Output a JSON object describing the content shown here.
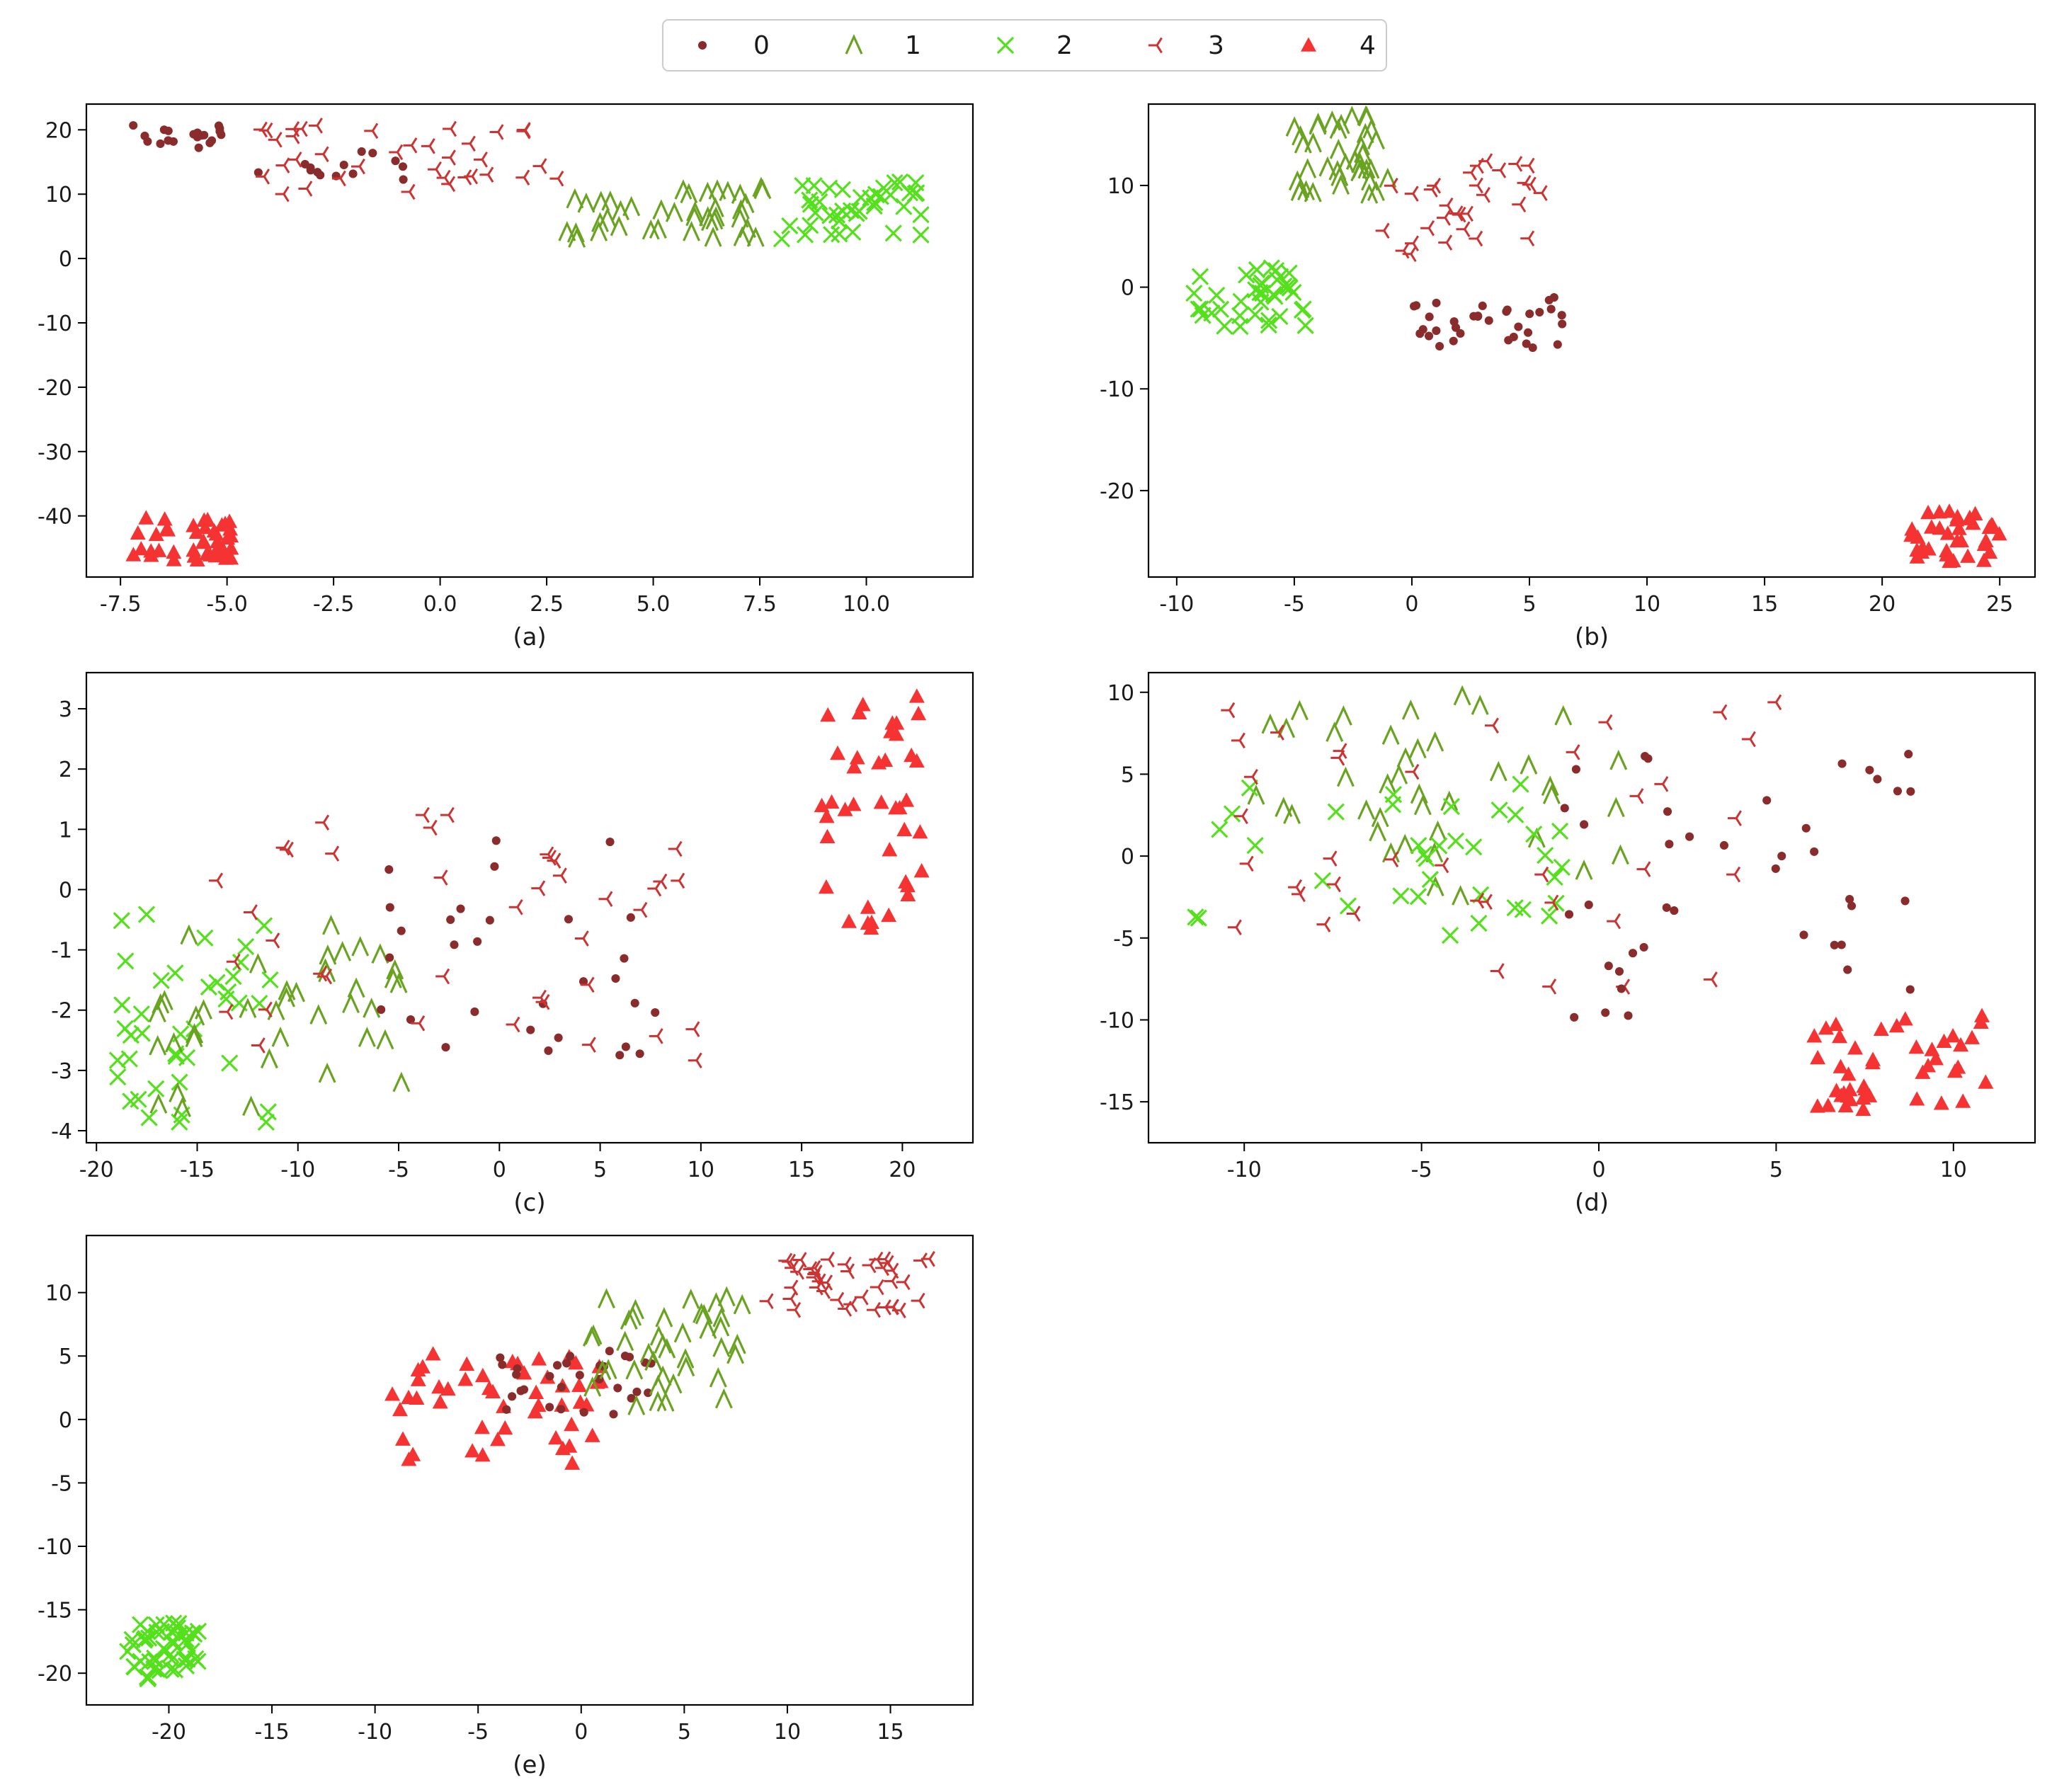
{
  "legend": {
    "entries": [
      {
        "label": "0",
        "marker": "circle-dot",
        "color": "#8b2c2c"
      },
      {
        "label": "1",
        "marker": "caret-up",
        "color": "#6aa321"
      },
      {
        "label": "2",
        "marker": "x-cross",
        "color": "#54e01b"
      },
      {
        "label": "3",
        "marker": "tri-left",
        "color": "#cc3333"
      },
      {
        "label": "4",
        "marker": "triangle-up",
        "color": "#f53333"
      }
    ]
  },
  "chart_data": [
    {
      "type": "scatter",
      "caption": "(a)",
      "xlim": [
        -8.3,
        12.5
      ],
      "ylim": [
        -49.5,
        24
      ],
      "xticks": [
        -7.5,
        -5.0,
        -2.5,
        0.0,
        2.5,
        5.0,
        7.5,
        10.0
      ],
      "xtick_labels": [
        "-7.5",
        "-5.0",
        "-2.5",
        "0.0",
        "2.5",
        "5.0",
        "7.5",
        "10.0"
      ],
      "yticks": [
        -40,
        -30,
        -20,
        -10,
        0,
        10,
        20
      ],
      "ytick_labels": [
        "-40",
        "-30",
        "-20",
        "-10",
        "0",
        "10",
        "20"
      ],
      "clusters": [
        {
          "cls": "0",
          "n": 20,
          "x": [
            -7.2,
            -5.0
          ],
          "y": [
            17,
            21
          ]
        },
        {
          "cls": "0",
          "n": 14,
          "x": [
            -4.5,
            -0.5
          ],
          "y": [
            12,
            17
          ]
        },
        {
          "cls": "3",
          "n": 36,
          "x": [
            -4.2,
            2.8
          ],
          "y": [
            10,
            21
          ]
        },
        {
          "cls": "1",
          "n": 40,
          "x": [
            2.8,
            7.6
          ],
          "y": [
            3,
            11
          ]
        },
        {
          "cls": "2",
          "n": 40,
          "x": [
            8.0,
            11.3
          ],
          "y": [
            3,
            12
          ]
        },
        {
          "cls": "4",
          "n": 42,
          "x": [
            -7.2,
            -4.8
          ],
          "y": [
            -47,
            -40
          ]
        }
      ]
    },
    {
      "type": "scatter",
      "caption": "(b)",
      "xlim": [
        -11.2,
        26.5
      ],
      "ylim": [
        -28.5,
        18
      ],
      "xticks": [
        -10,
        -5,
        0,
        5,
        10,
        15,
        20,
        25
      ],
      "xtick_labels": [
        "-10",
        "-5",
        "0",
        "5",
        "10",
        "15",
        "20",
        "25"
      ],
      "yticks": [
        -20,
        -10,
        0,
        10
      ],
      "ytick_labels": [
        "-20",
        "-10",
        "0",
        "10"
      ],
      "clusters": [
        {
          "cls": "1",
          "n": 40,
          "x": [
            -5.0,
            -1.0
          ],
          "y": [
            9,
            17
          ]
        },
        {
          "cls": "3",
          "n": 30,
          "x": [
            -1.5,
            6.0
          ],
          "y": [
            3,
            14
          ]
        },
        {
          "cls": "2",
          "n": 38,
          "x": [
            -9.5,
            -4.5
          ],
          "y": [
            -4,
            2
          ]
        },
        {
          "cls": "0",
          "n": 34,
          "x": [
            0,
            6.5
          ],
          "y": [
            -6,
            -1
          ]
        },
        {
          "cls": "4",
          "n": 36,
          "x": [
            21,
            25
          ],
          "y": [
            -27,
            -22
          ]
        }
      ]
    },
    {
      "type": "scatter",
      "caption": "(c)",
      "xlim": [
        -20.5,
        23.5
      ],
      "ylim": [
        -4.2,
        3.6
      ],
      "xticks": [
        -20,
        -15,
        -10,
        -5,
        0,
        5,
        10,
        15,
        20
      ],
      "xtick_labels": [
        "-20",
        "-15",
        "-10",
        "-5",
        "0",
        "5",
        "10",
        "15",
        "20"
      ],
      "yticks": [
        -4,
        -3,
        -2,
        -1,
        0,
        1,
        2,
        3
      ],
      "ytick_labels": [
        "-4",
        "-3",
        "-2",
        "-1",
        "0",
        "1",
        "2",
        "3"
      ],
      "clusters": [
        {
          "cls": "2",
          "n": 40,
          "x": [
            -19,
            -11
          ],
          "y": [
            -3.9,
            -0.3
          ]
        },
        {
          "cls": "1",
          "n": 40,
          "x": [
            -17,
            -4.5
          ],
          "y": [
            -3.7,
            -0.5
          ]
        },
        {
          "cls": "0",
          "n": 30,
          "x": [
            -6,
            8
          ],
          "y": [
            -2.8,
            0.95
          ]
        },
        {
          "cls": "3",
          "n": 40,
          "x": [
            -14,
            11
          ],
          "y": [
            -3.0,
            1.3
          ]
        },
        {
          "cls": "4",
          "n": 40,
          "x": [
            16,
            21
          ],
          "y": [
            -0.7,
            3.3
          ]
        }
      ]
    },
    {
      "type": "scatter",
      "caption": "(d)",
      "xlim": [
        -12.7,
        12.3
      ],
      "ylim": [
        -17.5,
        11.2
      ],
      "xticks": [
        -10,
        -5,
        0,
        5,
        10
      ],
      "xtick_labels": [
        "-10",
        "-5",
        "0",
        "5",
        "10"
      ],
      "yticks": [
        -15,
        -10,
        -5,
        0,
        5,
        10
      ],
      "ytick_labels": [
        "-15",
        "-10",
        "-5",
        "0",
        "5",
        "10"
      ],
      "clusters": [
        {
          "cls": "1",
          "n": 40,
          "x": [
            -10,
            0.8
          ],
          "y": [
            -2.5,
            10
          ]
        },
        {
          "cls": "2",
          "n": 36,
          "x": [
            -11.5,
            0
          ],
          "y": [
            -5,
            4.5
          ]
        },
        {
          "cls": "3",
          "n": 38,
          "x": [
            -10.5,
            5
          ],
          "y": [
            -8,
            9.5
          ]
        },
        {
          "cls": "0",
          "n": 40,
          "x": [
            -1.5,
            9
          ],
          "y": [
            -10,
            6.5
          ]
        },
        {
          "cls": "4",
          "n": 44,
          "x": [
            6,
            11
          ],
          "y": [
            -16,
            -9.5
          ]
        }
      ]
    },
    {
      "type": "scatter",
      "caption": "(e)",
      "xlim": [
        -24,
        19
      ],
      "ylim": [
        -22.5,
        14.5
      ],
      "xticks": [
        -20,
        -15,
        -10,
        -5,
        0,
        5,
        10,
        15
      ],
      "xtick_labels": [
        "-20",
        "-15",
        "-10",
        "-5",
        "0",
        "5",
        "10",
        "15"
      ],
      "yticks": [
        -20,
        -15,
        -10,
        -5,
        0,
        5,
        10
      ],
      "ytick_labels": [
        "-20",
        "-15",
        "-10",
        "-5",
        "0",
        "5",
        "10"
      ],
      "clusters": [
        {
          "cls": "2",
          "n": 50,
          "x": [
            -22,
            -18.5
          ],
          "y": [
            -20.5,
            -16
          ]
        },
        {
          "cls": "4",
          "n": 50,
          "x": [
            -9.5,
            1
          ],
          "y": [
            -3.5,
            5.5
          ]
        },
        {
          "cls": "0",
          "n": 30,
          "x": [
            -4,
            3.5
          ],
          "y": [
            0,
            5.5
          ]
        },
        {
          "cls": "1",
          "n": 40,
          "x": [
            0.5,
            8
          ],
          "y": [
            1,
            10
          ]
        },
        {
          "cls": "3",
          "n": 42,
          "x": [
            9,
            17
          ],
          "y": [
            8.5,
            13
          ]
        }
      ]
    }
  ]
}
